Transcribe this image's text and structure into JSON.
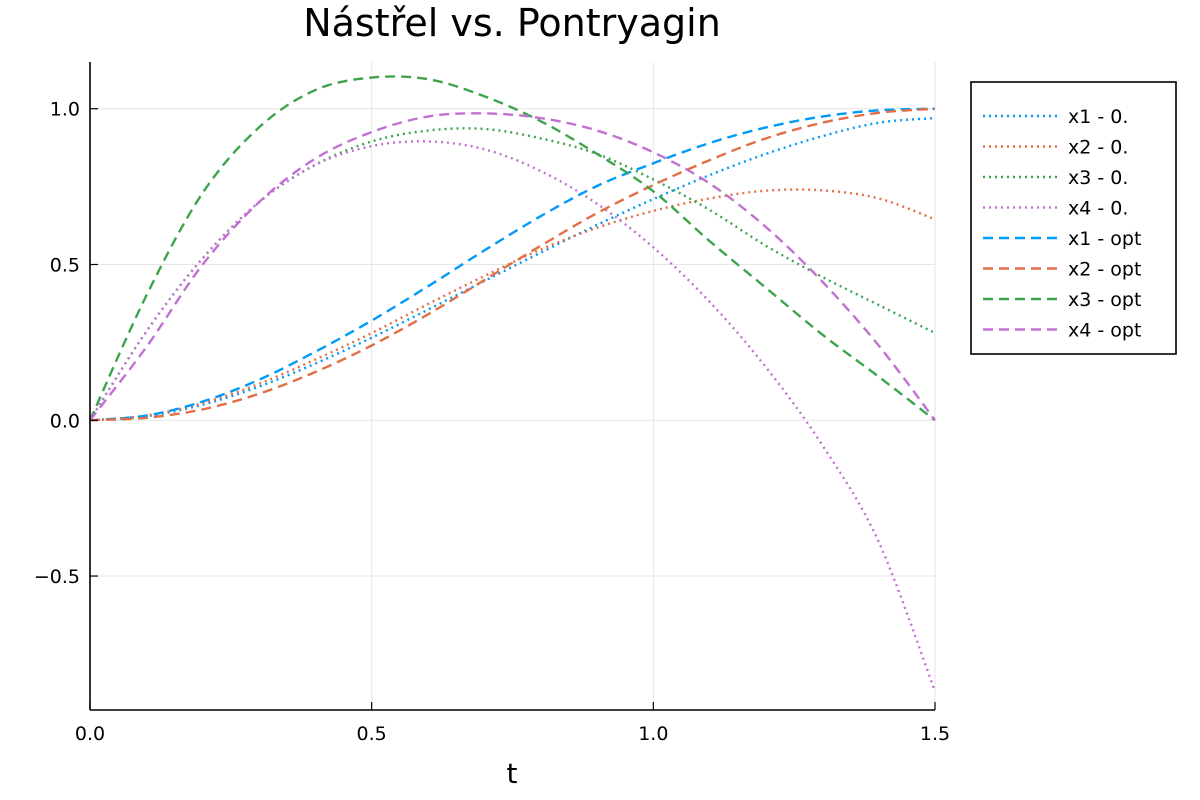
{
  "chart_data": {
    "type": "line",
    "title": "Nástřel vs. Pontryagin",
    "xlabel": "t",
    "ylabel": "",
    "xlim": [
      0,
      1.5
    ],
    "ylim": [
      -0.93,
      1.15
    ],
    "xticks": [
      0,
      0.5,
      1.0,
      1.5
    ],
    "xtick_labels": [
      "0.0",
      "0.5",
      "1.0",
      "1.5"
    ],
    "yticks": [
      -0.5,
      0,
      0.5,
      1.0
    ],
    "ytick_labels": [
      "−0.5",
      "0.0",
      "0.5",
      "1.0"
    ],
    "grid": true,
    "legend_position": "top-right outside",
    "x": [
      0,
      0.1,
      0.2,
      0.3,
      0.4,
      0.5,
      0.6,
      0.7,
      0.8,
      0.9,
      1.0,
      1.1,
      1.2,
      1.3,
      1.4,
      1.5
    ],
    "series": [
      {
        "name": "x1 - 0.",
        "color": "#009af9",
        "style": "dotted",
        "values": [
          0,
          0.013,
          0.05,
          0.108,
          0.182,
          0.265,
          0.355,
          0.447,
          0.538,
          0.627,
          0.71,
          0.787,
          0.855,
          0.912,
          0.955,
          0.97
        ]
      },
      {
        "name": "x2 - 0.",
        "color": "#e26f46",
        "style": "dotted",
        "values": [
          0,
          0.015,
          0.055,
          0.117,
          0.195,
          0.28,
          0.373,
          0.463,
          0.548,
          0.618,
          0.672,
          0.712,
          0.737,
          0.738,
          0.712,
          0.645
        ]
      },
      {
        "name": "x3 - 0.",
        "color": "#3da44d",
        "style": "dotted",
        "values": [
          0,
          0.285,
          0.52,
          0.7,
          0.82,
          0.895,
          0.93,
          0.935,
          0.905,
          0.855,
          0.773,
          0.675,
          0.56,
          0.46,
          0.37,
          0.28
        ]
      },
      {
        "name": "x4 - 0.",
        "color": "#c271d2",
        "style": "dotted",
        "values": [
          0,
          0.285,
          0.52,
          0.7,
          0.82,
          0.88,
          0.895,
          0.87,
          0.8,
          0.695,
          0.555,
          0.38,
          0.17,
          -0.08,
          -0.39,
          -0.87
        ]
      },
      {
        "name": "x1 - opt",
        "color": "#009af9",
        "style": "dashed",
        "values": [
          0,
          0.015,
          0.06,
          0.13,
          0.22,
          0.32,
          0.43,
          0.545,
          0.655,
          0.752,
          0.825,
          0.89,
          0.94,
          0.975,
          0.995,
          1.0
        ]
      },
      {
        "name": "x2 - opt",
        "color": "#e26f46",
        "style": "dashed",
        "values": [
          0,
          0.008,
          0.035,
          0.085,
          0.155,
          0.24,
          0.34,
          0.45,
          0.56,
          0.665,
          0.755,
          0.835,
          0.905,
          0.955,
          0.987,
          1.0
        ]
      },
      {
        "name": "x3 - opt",
        "color": "#3da44d",
        "style": "dashed",
        "values": [
          0,
          0.4,
          0.73,
          0.94,
          1.06,
          1.1,
          1.095,
          1.04,
          0.96,
          0.855,
          0.735,
          0.575,
          0.425,
          0.275,
          0.14,
          0.0
        ]
      },
      {
        "name": "x4 - opt",
        "color": "#c271d2",
        "style": "dashed",
        "values": [
          0,
          0.235,
          0.5,
          0.7,
          0.84,
          0.925,
          0.975,
          0.985,
          0.97,
          0.93,
          0.86,
          0.76,
          0.62,
          0.445,
          0.24,
          0.0
        ]
      }
    ]
  }
}
